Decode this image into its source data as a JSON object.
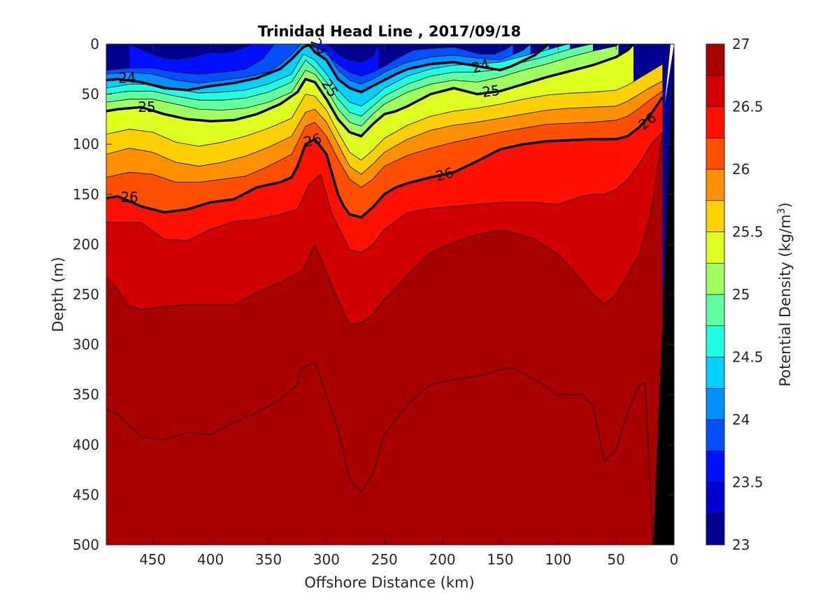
{
  "chart_data": {
    "type": "contour",
    "title": "Trinidad Head Line , 2017/09/18",
    "xlabel": "Offshore Distance (km)",
    "ylabel": "Depth (m)",
    "x_reversed": true,
    "y_reversed": true,
    "xlim": [
      0,
      490
    ],
    "ylim": [
      0,
      500
    ],
    "xticks": [
      "450",
      "400",
      "350",
      "300",
      "250",
      "200",
      "150",
      "100",
      "50",
      "0"
    ],
    "yticks": [
      "0",
      "50",
      "100",
      "150",
      "200",
      "250",
      "300",
      "350",
      "400",
      "450",
      "500"
    ],
    "colorbar": {
      "label": "Potential Density (kg/m",
      "label_superscript": "3",
      "label_suffix": ")",
      "range": [
        23,
        27
      ],
      "ticks": [
        "27",
        "26.5",
        "26",
        "25.5",
        "25",
        "24.5",
        "24",
        "23.5",
        "23"
      ],
      "colors": [
        "#000090",
        "#0000D0",
        "#0010FF",
        "#0050FF",
        "#0090FF",
        "#00D0FF",
        "#20FFDF",
        "#60FF9F",
        "#9FFF60",
        "#DFFF20",
        "#FFD000",
        "#FF9000",
        "#FF5000",
        "#FF1000",
        "#D00000",
        "#A80000"
      ]
    },
    "levels": [
      23.25,
      23.5,
      23.75,
      24,
      24.25,
      24.5,
      24.75,
      25,
      25.25,
      25.5,
      25.75,
      26,
      26.25,
      26.5,
      26.75
    ],
    "isopycnals": [
      {
        "level": 26.75,
        "x": [
          490,
          480,
          460,
          440,
          420,
          400,
          380,
          360,
          340,
          325,
          323,
          310,
          300,
          290,
          280,
          270,
          260,
          250,
          230,
          210,
          190,
          170,
          150,
          140,
          120,
          100,
          80,
          70,
          60,
          50,
          40,
          30,
          25,
          18
        ],
        "depth": [
          365,
          370,
          392,
          395,
          388,
          390,
          378,
          368,
          355,
          340,
          325,
          318,
          350,
          385,
          435,
          447,
          430,
          390,
          360,
          340,
          335,
          332,
          325,
          323,
          335,
          350,
          350,
          360,
          417,
          405,
          368,
          340,
          338,
          500
        ]
      },
      {
        "level": 26.5,
        "x": [
          490,
          480,
          470,
          460,
          440,
          420,
          400,
          380,
          360,
          340,
          320,
          310,
          300,
          290,
          280,
          270,
          260,
          250,
          230,
          210,
          190,
          170,
          150,
          140,
          120,
          100,
          80,
          70,
          60,
          50,
          40,
          30,
          20,
          10
        ],
        "depth": [
          233,
          245,
          262,
          265,
          262,
          260,
          260,
          260,
          248,
          238,
          225,
          200,
          228,
          255,
          280,
          278,
          270,
          255,
          230,
          208,
          198,
          190,
          186,
          188,
          195,
          210,
          235,
          250,
          260,
          250,
          230,
          210,
          170,
          90
        ]
      },
      {
        "level": 26.25,
        "x": [
          490,
          460,
          440,
          420,
          400,
          380,
          360,
          340,
          325,
          315,
          305,
          300,
          295,
          290,
          280,
          270,
          260,
          250,
          230,
          210,
          190,
          170,
          150,
          140,
          120,
          100,
          80,
          70,
          60,
          50,
          40,
          30,
          20,
          10
        ],
        "depth": [
          178,
          178,
          195,
          196,
          185,
          177,
          175,
          170,
          165,
          140,
          130,
          150,
          170,
          182,
          205,
          208,
          200,
          185,
          168,
          164,
          162,
          160,
          158,
          158,
          158,
          160,
          152,
          150,
          150,
          145,
          135,
          120,
          100,
          88
        ]
      },
      {
        "level": 26,
        "x": [
          490,
          480,
          460,
          440,
          420,
          400,
          380,
          360,
          340,
          330,
          325,
          318,
          310,
          300,
          295,
          290,
          285,
          280,
          270,
          260,
          250,
          240,
          230,
          210,
          190,
          170,
          150,
          130,
          110,
          90,
          70,
          50,
          40,
          30,
          20,
          10
        ],
        "depth": [
          154,
          152,
          162,
          168,
          165,
          158,
          155,
          143,
          138,
          133,
          122,
          100,
          95,
          110,
          130,
          150,
          162,
          170,
          173,
          163,
          150,
          143,
          139,
          133,
          128,
          117,
          105,
          100,
          97,
          96,
          95,
          95,
          92,
          83,
          70,
          53
        ]
      },
      {
        "level": 25.75,
        "x": [
          490,
          470,
          450,
          430,
          410,
          390,
          370,
          350,
          330,
          318,
          310,
          300,
          290,
          280,
          270,
          260,
          250,
          230,
          210,
          190,
          170,
          150,
          130,
          110,
          90,
          70,
          50,
          40,
          30,
          20,
          10
        ],
        "depth": [
          133,
          128,
          130,
          138,
          138,
          135,
          132,
          122,
          110,
          82,
          78,
          92,
          115,
          135,
          143,
          135,
          122,
          111,
          104,
          98,
          93,
          88,
          84,
          80,
          79,
          78,
          76,
          72,
          64,
          55,
          47
        ]
      },
      {
        "level": 25.5,
        "x": [
          490,
          470,
          450,
          430,
          410,
          390,
          370,
          350,
          330,
          318,
          310,
          300,
          290,
          280,
          270,
          260,
          250,
          230,
          210,
          190,
          170,
          150,
          130,
          110,
          90,
          70,
          50,
          40,
          30,
          20,
          10
        ],
        "depth": [
          110,
          104,
          108,
          118,
          122,
          118,
          112,
          103,
          92,
          68,
          65,
          78,
          100,
          122,
          130,
          120,
          108,
          95,
          86,
          81,
          78,
          74,
          70,
          66,
          64,
          63,
          62,
          57,
          50,
          43,
          37
        ]
      },
      {
        "level": 25.25,
        "x": [
          490,
          470,
          450,
          430,
          410,
          390,
          370,
          350,
          330,
          318,
          310,
          300,
          290,
          280,
          270,
          260,
          250,
          230,
          210,
          190,
          170,
          150,
          130,
          110,
          90,
          70,
          50,
          40,
          30,
          20,
          10
        ],
        "depth": [
          90,
          85,
          88,
          98,
          102,
          98,
          92,
          84,
          74,
          50,
          52,
          66,
          88,
          108,
          116,
          106,
          94,
          81,
          72,
          67,
          64,
          60,
          55,
          51,
          49,
          48,
          46,
          41,
          34,
          27,
          20
        ]
      },
      {
        "level": 25,
        "x": [
          490,
          480,
          460,
          440,
          420,
          400,
          380,
          360,
          340,
          325,
          318,
          310,
          300,
          290,
          280,
          270,
          260,
          250,
          240,
          230,
          210,
          190,
          170,
          150,
          130,
          110,
          90,
          70,
          50,
          40,
          35
        ],
        "depth": [
          67,
          65,
          63,
          70,
          75,
          77,
          76,
          70,
          60,
          48,
          35,
          38,
          55,
          75,
          88,
          92,
          80,
          70,
          67,
          62,
          50,
          44,
          50,
          47,
          40,
          33,
          27,
          21,
          13,
          6,
          0
        ]
      },
      {
        "level": 24.75,
        "x": [
          490,
          470,
          450,
          430,
          410,
          390,
          370,
          350,
          330,
          318,
          310,
          300,
          290,
          280,
          270,
          260,
          250,
          230,
          210,
          190,
          170,
          150,
          130,
          110,
          90,
          70,
          50,
          48
        ],
        "depth": [
          58,
          55,
          55,
          60,
          65,
          66,
          64,
          58,
          48,
          26,
          30,
          45,
          65,
          78,
          82,
          70,
          60,
          48,
          40,
          36,
          38,
          33,
          26,
          20,
          13,
          7,
          2,
          0
        ]
      },
      {
        "level": 24.5,
        "x": [
          490,
          470,
          450,
          430,
          410,
          390,
          370,
          350,
          330,
          318,
          310,
          300,
          290,
          280,
          270,
          260,
          250,
          230,
          210,
          190,
          170,
          150,
          130,
          110,
          90,
          75,
          70
        ],
        "depth": [
          50,
          47,
          47,
          52,
          56,
          56,
          54,
          48,
          38,
          16,
          24,
          38,
          55,
          68,
          72,
          62,
          52,
          40,
          32,
          28,
          28,
          25,
          18,
          12,
          5,
          1,
          0
        ]
      },
      {
        "level": 24.25,
        "x": [
          490,
          470,
          450,
          430,
          410,
          390,
          370,
          350,
          330,
          320,
          310,
          300,
          290,
          280,
          270,
          260,
          250,
          230,
          210,
          190,
          170,
          150,
          130,
          110,
          95,
          90
        ],
        "depth": [
          44,
          40,
          40,
          45,
          49,
          48,
          46,
          40,
          30,
          10,
          16,
          30,
          46,
          58,
          62,
          54,
          44,
          32,
          25,
          21,
          20,
          18,
          12,
          6,
          1,
          0
        ]
      },
      {
        "level": 24,
        "x": [
          490,
          480,
          460,
          440,
          420,
          400,
          380,
          360,
          340,
          330,
          320,
          315,
          310,
          300,
          290,
          280,
          270,
          260,
          250,
          240,
          230,
          210,
          190,
          170,
          150,
          140,
          120,
          108
        ],
        "depth": [
          36,
          35,
          38,
          44,
          46,
          42,
          39,
          34,
          25,
          15,
          3,
          1,
          8,
          16,
          35,
          44,
          48,
          42,
          36,
          30,
          25,
          20,
          18,
          22,
          26,
          22,
          11,
          0
        ]
      },
      {
        "level": 23.75,
        "x": [
          490,
          470,
          450,
          430,
          410,
          390,
          370,
          350,
          340,
          330,
          322,
          316,
          312,
          300,
          290,
          280,
          270,
          260,
          250,
          230,
          210,
          190,
          170,
          150,
          130,
          124
        ],
        "depth": [
          30,
          28,
          30,
          36,
          39,
          36,
          33,
          28,
          20,
          10,
          0,
          0,
          2,
          8,
          26,
          36,
          40,
          35,
          28,
          18,
          13,
          11,
          14,
          16,
          6,
          0
        ]
      },
      {
        "level": 23.5,
        "x": [
          490,
          470,
          450,
          430,
          410,
          390,
          370,
          355,
          345,
          312,
          302,
          290,
          280,
          270,
          260,
          250,
          240,
          225,
          205,
          190,
          180,
          168,
          155,
          145,
          139
        ],
        "depth": [
          26,
          24,
          24,
          28,
          30,
          28,
          25,
          15,
          0,
          0,
          8,
          20,
          28,
          32,
          28,
          22,
          15,
          6,
          4,
          3,
          6,
          10,
          10,
          5,
          0
        ]
      },
      {
        "level": 23.25,
        "x": [
          470,
          460,
          450,
          440,
          430,
          420,
          410,
          400,
          390,
          380,
          370,
          365,
          298,
          295,
          290,
          280,
          270,
          260,
          255
        ],
        "depth": [
          0,
          5,
          10,
          14,
          15,
          14,
          11,
          8,
          9,
          7,
          3,
          0,
          0,
          4,
          10,
          16,
          18,
          12,
          0
        ]
      }
    ],
    "labeled_contours": [
      26,
      25,
      24
    ],
    "contour_labels": [
      {
        "text": "24",
        "x": 472,
        "depth": 34,
        "angle": 0
      },
      {
        "text": "24",
        "x": 307,
        "depth": 3,
        "angle": 65
      },
      {
        "text": "24",
        "x": 167,
        "depth": 22,
        "angle": -15
      },
      {
        "text": "25",
        "x": 455,
        "depth": 63,
        "angle": 0
      },
      {
        "text": "25",
        "x": 297,
        "depth": 44,
        "angle": 58
      },
      {
        "text": "25",
        "x": 158,
        "depth": 47,
        "angle": -8
      },
      {
        "text": "26",
        "x": 470,
        "depth": 153,
        "angle": 0
      },
      {
        "text": "26",
        "x": 312,
        "depth": 96,
        "angle": -15
      },
      {
        "text": "26",
        "x": 198,
        "depth": 130,
        "angle": -15
      },
      {
        "text": "26",
        "x": 23,
        "depth": 77,
        "angle": -38
      }
    ],
    "bottom_mask_color": "#000000",
    "grid": false
  }
}
